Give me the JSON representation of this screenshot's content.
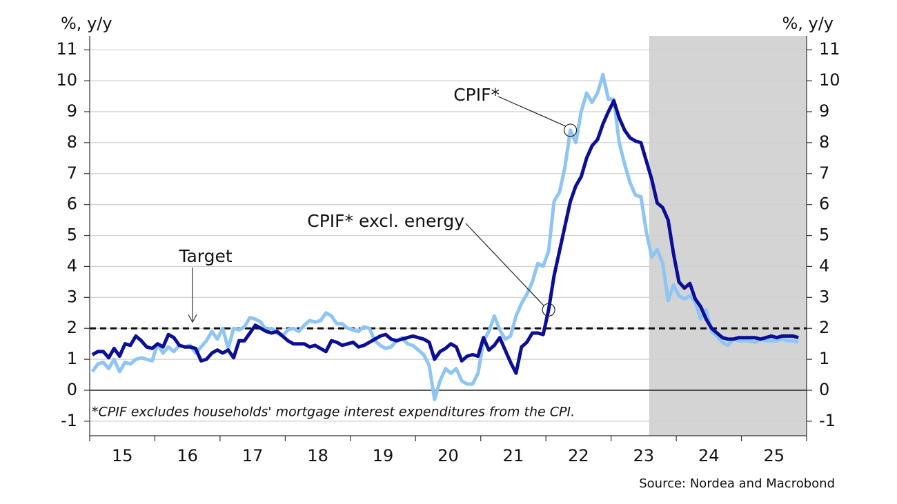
{
  "chart_data": {
    "type": "line",
    "y_label": "%, y/y",
    "y2_label": "%, y/y",
    "footnote": "*CPIF excludes households' mortgage interest expenditures from the CPI.",
    "source": "Source: Nordea and Macrobond",
    "categories": [
      "15",
      null,
      null,
      null,
      null,
      null,
      null,
      null,
      null,
      null,
      null,
      null,
      "16",
      null,
      null,
      null,
      null,
      null,
      null,
      null,
      null,
      null,
      null,
      null,
      "17",
      null,
      null,
      null,
      null,
      null,
      null,
      null,
      null,
      null,
      null,
      null,
      "18",
      null,
      null,
      null,
      null,
      null,
      null,
      null,
      null,
      null,
      null,
      null,
      "19",
      null,
      null,
      null,
      null,
      null,
      null,
      null,
      null,
      null,
      null,
      null,
      "20",
      null,
      null,
      null,
      null,
      null,
      null,
      null,
      null,
      null,
      null,
      null,
      "21",
      null,
      null,
      null,
      null,
      null,
      null,
      null,
      null,
      null,
      null,
      null,
      "22",
      null,
      null,
      null,
      null,
      null,
      null,
      null,
      null,
      null,
      null,
      null,
      "23",
      null,
      null,
      null,
      null,
      null,
      null,
      null,
      null,
      null,
      null,
      null,
      "24",
      null,
      null,
      null,
      null,
      null,
      null,
      null,
      null,
      null,
      null,
      null,
      "25",
      null,
      null,
      null,
      null,
      null,
      null,
      null,
      null,
      null,
      null,
      null
    ],
    "series": [
      {
        "name": "CPIF*",
        "color": "#8ec5f3",
        "values": [
          0.6,
          0.85,
          0.9,
          0.7,
          1.0,
          0.6,
          0.9,
          0.85,
          1.0,
          1.05,
          1.0,
          0.95,
          1.5,
          1.2,
          1.4,
          1.25,
          1.45,
          1.4,
          1.45,
          1.2,
          1.4,
          1.6,
          1.9,
          1.65,
          2.0,
          1.35,
          2.0,
          1.95,
          2.05,
          2.35,
          2.3,
          2.2,
          1.95,
          2.0,
          1.85,
          1.75,
          1.95,
          2.0,
          1.9,
          2.1,
          2.25,
          2.2,
          2.25,
          2.5,
          2.4,
          2.15,
          2.15,
          2.0,
          1.95,
          1.9,
          2.05,
          2.0,
          1.6,
          1.45,
          1.35,
          1.4,
          1.6,
          1.7,
          1.5,
          1.45,
          1.3,
          1.15,
          0.8,
          -0.3,
          0.3,
          0.7,
          0.55,
          0.7,
          0.3,
          0.2,
          0.2,
          0.55,
          1.6,
          1.9,
          2.4,
          1.95,
          1.65,
          1.75,
          2.4,
          2.8,
          3.1,
          3.5,
          4.1,
          4.0,
          4.5,
          6.1,
          6.4,
          7.2,
          8.4,
          8.0,
          9.0,
          9.6,
          9.3,
          9.6,
          10.2,
          9.4,
          9.4,
          8.0,
          7.3,
          6.7,
          6.3,
          6.25,
          5.1,
          4.3,
          4.55,
          4.1,
          2.9,
          3.4,
          3.05,
          2.95,
          3.05,
          2.85,
          2.3,
          2.6,
          1.9,
          1.75,
          1.55,
          1.45,
          1.65,
          1.6,
          1.6,
          1.6,
          1.55,
          1.65,
          1.6,
          1.6,
          1.6,
          1.65,
          1.6,
          1.6,
          1.55,
          null
        ]
      },
      {
        "name": "CPIF* excl. energy",
        "color": "#0c0f96",
        "values": [
          1.15,
          1.25,
          1.25,
          1.05,
          1.35,
          1.1,
          1.5,
          1.45,
          1.75,
          1.6,
          1.4,
          1.35,
          1.5,
          1.4,
          1.8,
          1.7,
          1.45,
          1.4,
          1.4,
          1.35,
          0.95,
          1.0,
          1.2,
          1.3,
          1.2,
          1.3,
          1.05,
          1.6,
          1.6,
          1.85,
          2.1,
          2.0,
          1.9,
          1.85,
          1.9,
          1.75,
          1.6,
          1.5,
          1.5,
          1.5,
          1.4,
          1.45,
          1.35,
          1.25,
          1.6,
          1.55,
          1.45,
          1.5,
          1.55,
          1.4,
          1.45,
          1.55,
          1.65,
          1.75,
          1.8,
          1.65,
          1.6,
          1.65,
          1.7,
          1.75,
          1.7,
          1.65,
          1.55,
          1.0,
          1.25,
          1.35,
          1.5,
          1.4,
          0.95,
          1.1,
          1.15,
          1.1,
          1.7,
          1.3,
          1.45,
          1.7,
          1.3,
          0.9,
          0.55,
          1.4,
          1.55,
          1.85,
          1.85,
          1.8,
          2.6,
          3.7,
          4.5,
          5.3,
          6.1,
          6.6,
          6.9,
          7.5,
          7.9,
          8.1,
          8.6,
          9.0,
          9.35,
          8.8,
          8.4,
          8.15,
          8.05,
          8.0,
          7.4,
          6.8,
          6.05,
          5.9,
          5.5,
          4.4,
          3.5,
          3.3,
          3.45,
          2.95,
          2.7,
          2.3,
          2.0,
          1.85,
          1.7,
          1.65,
          1.65,
          1.7,
          1.7,
          1.7,
          1.7,
          1.65,
          1.7,
          1.75,
          1.7,
          1.75,
          1.75,
          1.75,
          1.7,
          null
        ]
      }
    ],
    "target": {
      "label": "Target",
      "value": 2
    },
    "shaded_from": 103,
    "ylim": [
      -1.47,
      11.45
    ],
    "yticks": [
      -1,
      0,
      1,
      2,
      3,
      4,
      5,
      6,
      7,
      8,
      9,
      10,
      11
    ],
    "y2lim": [
      -1.47,
      11.45
    ],
    "y2ticks": [
      -1,
      0,
      1,
      2,
      3,
      4,
      5,
      6,
      7,
      8,
      9,
      10,
      11
    ],
    "grid": true
  }
}
